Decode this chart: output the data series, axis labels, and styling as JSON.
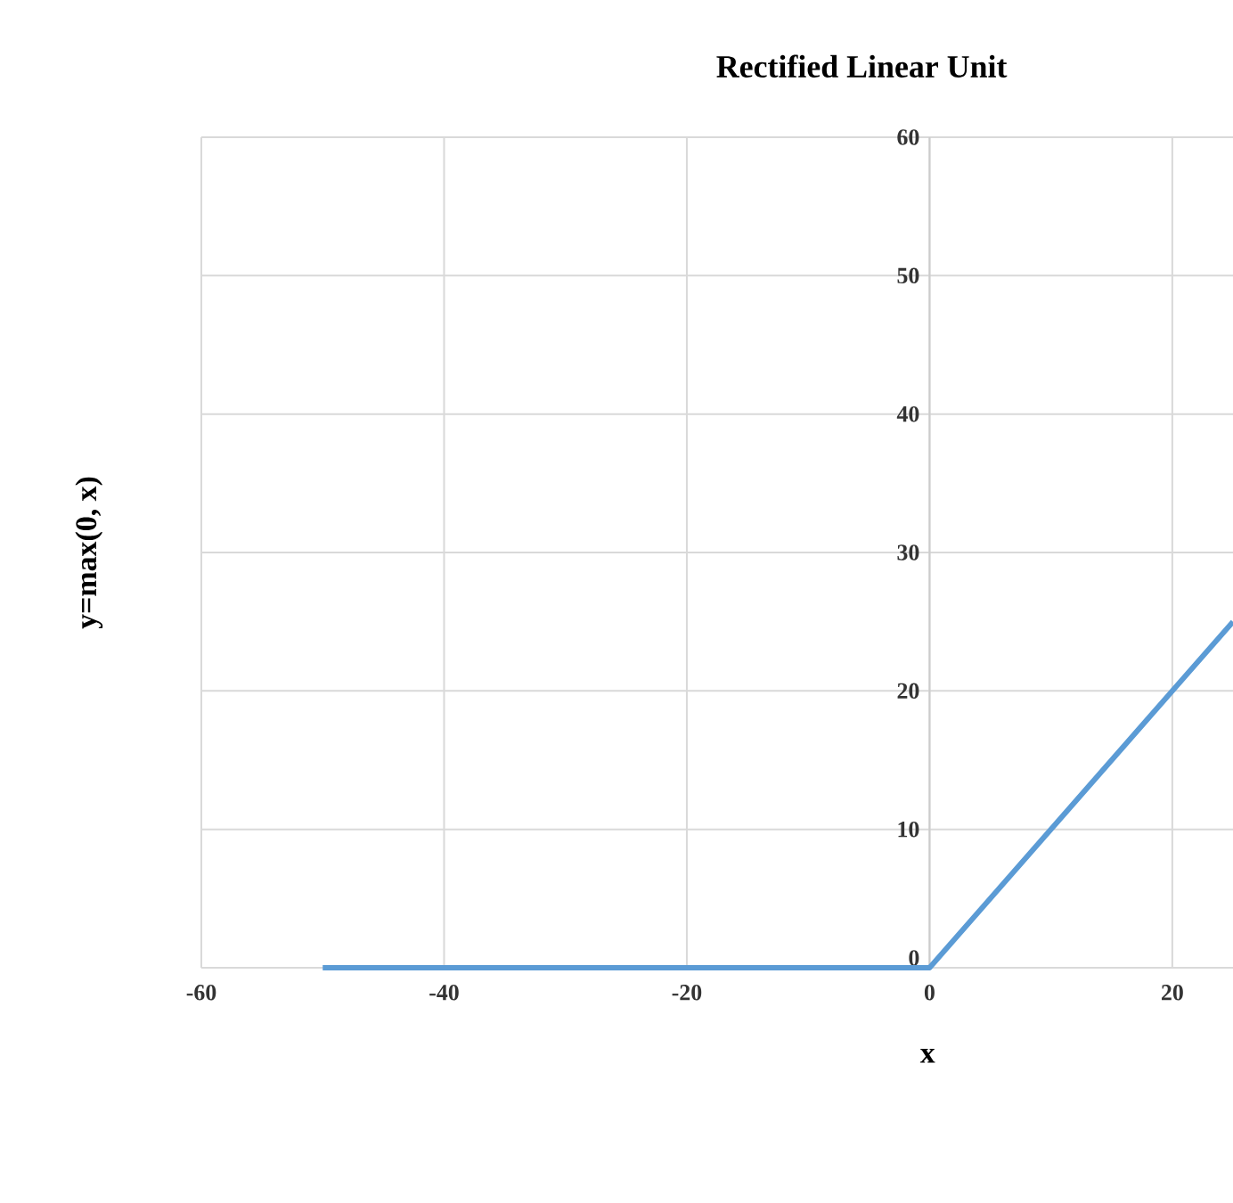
{
  "chart_data": {
    "type": "line",
    "title": "Rectified Linear Unit",
    "xlabel": "x",
    "ylabel": "y=max(0, x)",
    "x": [
      -50,
      0,
      25
    ],
    "series": [
      {
        "color": "#5b9bd5",
        "values": [
          0,
          0,
          25
        ]
      }
    ],
    "xlim": [
      -60,
      25
    ],
    "ylim": [
      0,
      60
    ],
    "xticks": [
      -60,
      -40,
      -20,
      0,
      20
    ],
    "yticks": [
      0,
      10,
      20,
      30,
      40,
      50,
      60
    ],
    "grid": true
  }
}
